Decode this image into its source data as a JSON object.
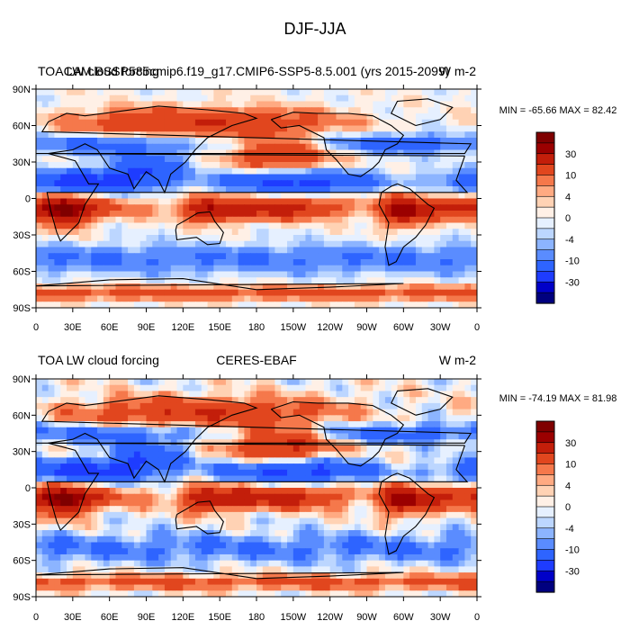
{
  "figure_title": "DJF-JJA",
  "colors": {
    "deep_blue": "#00007f",
    "deep_red": "#7f0000"
  },
  "chart_data": [
    {
      "type": "heatmap",
      "subtitle_left": "TOA LW cloud forcing",
      "subtitle_center": "CAM.BSSP585cmip6.f19_g17.CMIP6-SSP5-8.5.001 (yrs 2015-2099)",
      "subtitle_right": "W m-2",
      "stats": "MIN = -65.66 MAX =  82.42",
      "xlim": [
        0,
        360
      ],
      "ylim": [
        -90,
        90
      ],
      "x_ticks": [
        "0",
        "30E",
        "60E",
        "90E",
        "120E",
        "150E",
        "180",
        "150W",
        "120W",
        "90W",
        "60W",
        "30W",
        "0"
      ],
      "y_ticks": [
        "90N",
        "60N",
        "30N",
        "0",
        "30S",
        "60S",
        "90S"
      ],
      "colorbar_levels": [
        -40,
        -30,
        -20,
        -10,
        -6,
        -4,
        -2,
        0,
        2,
        4,
        6,
        10,
        20,
        30,
        40
      ],
      "colorbar_labels": [
        "30",
        "10",
        "4",
        "0",
        "-4",
        "-10",
        "-30"
      ]
    },
    {
      "type": "heatmap",
      "subtitle_left": "TOA LW cloud forcing",
      "subtitle_center": "CERES-EBAF",
      "subtitle_right": "W m-2",
      "stats": "MIN = -74.19 MAX =  81.98",
      "xlim": [
        0,
        360
      ],
      "ylim": [
        -90,
        90
      ],
      "x_ticks": [
        "0",
        "30E",
        "60E",
        "90E",
        "120E",
        "150E",
        "180",
        "150W",
        "120W",
        "90W",
        "60W",
        "30W",
        "0"
      ],
      "y_ticks": [
        "90N",
        "60N",
        "30N",
        "0",
        "30S",
        "60S",
        "90S"
      ],
      "colorbar_levels": [
        -40,
        -30,
        -20,
        -10,
        -6,
        -4,
        -2,
        0,
        2,
        4,
        6,
        10,
        20,
        30,
        40
      ],
      "colorbar_labels": [
        "30",
        "10",
        "4",
        "0",
        "-4",
        "-10",
        "-30"
      ]
    }
  ]
}
